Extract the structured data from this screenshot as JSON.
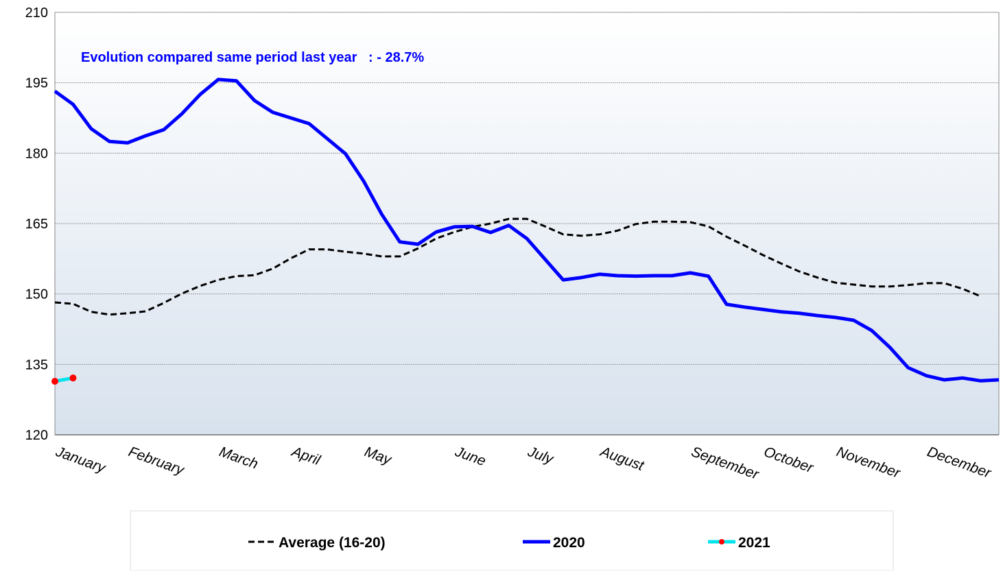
{
  "chart_data": {
    "type": "line",
    "annotation": "Evolution compared same period last year   : - 28.7%",
    "categories": [
      "January",
      null,
      null,
      null,
      "February",
      null,
      null,
      null,
      null,
      "March",
      null,
      null,
      null,
      "April",
      null,
      null,
      null,
      "May",
      null,
      null,
      null,
      null,
      "June",
      null,
      null,
      null,
      "July",
      null,
      null,
      null,
      "August",
      null,
      null,
      null,
      null,
      "September",
      null,
      null,
      null,
      "October",
      null,
      null,
      null,
      "November",
      null,
      null,
      null,
      null,
      "December",
      null,
      null,
      null,
      null
    ],
    "series": [
      {
        "name": "Average (16-20)",
        "color": "#000000",
        "dash": true,
        "values": [
          148.2,
          147.9,
          146.2,
          145.6,
          145.9,
          146.3,
          148.1,
          150.1,
          151.7,
          153.0,
          153.8,
          154.0,
          155.4,
          157.6,
          159.5,
          159.5,
          159.0,
          158.6,
          158.0,
          158.0,
          159.7,
          161.8,
          163.2,
          164.3,
          165.0,
          166.0,
          166.0,
          164.4,
          162.7,
          162.4,
          162.7,
          163.5,
          164.9,
          165.4,
          165.4,
          165.3,
          164.4,
          162.2,
          160.3,
          158.3,
          156.5,
          154.8,
          153.5,
          152.4,
          152.0,
          151.6,
          151.6,
          151.9,
          152.3,
          152.3,
          151.1,
          149.5,
          null
        ]
      },
      {
        "name": "2020",
        "color": "#0000ff",
        "values": [
          193.2,
          190.4,
          185.2,
          182.5,
          182.2,
          183.7,
          185.0,
          188.4,
          192.5,
          195.7,
          195.4,
          191.2,
          188.7,
          187.5,
          186.3,
          183.1,
          179.9,
          174.1,
          167.0,
          161.1,
          160.6,
          163.2,
          164.3,
          164.4,
          163.1,
          164.6,
          161.8,
          157.4,
          153.0,
          153.5,
          154.2,
          153.9,
          153.8,
          153.9,
          153.9,
          154.5,
          153.8,
          147.8,
          147.2,
          146.7,
          146.2,
          145.9,
          145.4,
          145.0,
          144.4,
          142.2,
          138.6,
          134.3,
          132.6,
          131.7,
          132.1,
          131.5,
          131.7
        ]
      },
      {
        "name": "2021",
        "color": "#00e5ee",
        "marker_color": "#ff0000",
        "values": [
          131.4,
          132.1,
          null,
          null,
          null,
          null,
          null,
          null,
          null,
          null,
          null,
          null,
          null,
          null,
          null,
          null,
          null,
          null,
          null,
          null,
          null,
          null,
          null,
          null,
          null,
          null,
          null,
          null,
          null,
          null,
          null,
          null,
          null,
          null,
          null,
          null,
          null,
          null,
          null,
          null,
          null,
          null,
          null,
          null,
          null,
          null,
          null,
          null,
          null,
          null,
          null,
          null,
          null
        ]
      }
    ],
    "ylim": [
      120,
      210
    ],
    "yticks": [
      120,
      135,
      150,
      165,
      180,
      195,
      210
    ],
    "grid": true,
    "legend": "bottom"
  }
}
